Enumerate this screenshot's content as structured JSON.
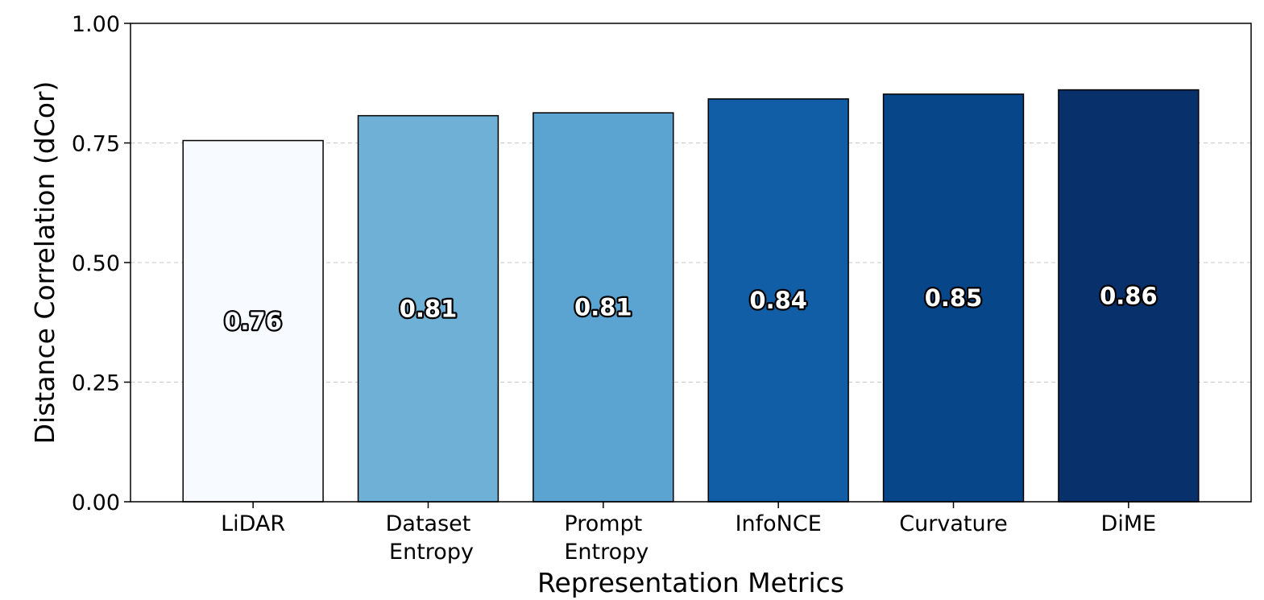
{
  "chart_data": {
    "type": "bar",
    "categories": [
      [
        "LiDAR"
      ],
      [
        "Dataset",
        "Entropy"
      ],
      [
        "Prompt",
        "Entropy"
      ],
      [
        "InfoNCE"
      ],
      [
        "Curvature"
      ],
      [
        "DiME"
      ]
    ],
    "values": [
      0.755,
      0.807,
      0.813,
      0.842,
      0.852,
      0.861
    ],
    "value_labels": [
      "0.76",
      "0.81",
      "0.81",
      "0.84",
      "0.85",
      "0.86"
    ],
    "bar_colors": [
      "#f7fbff",
      "#6fb0d7",
      "#5ba3d0",
      "#125ea6",
      "#08468a",
      "#08306b"
    ],
    "label_colors": [
      "#f7fbff",
      "#ffffff",
      "#ffffff",
      "#ffffff",
      "#ffffff",
      "#ffffff"
    ],
    "title": "",
    "xlabel": "Representation Metrics",
    "ylabel": "Distance Correlation (dCor)",
    "ylim": [
      0,
      1
    ],
    "yticks": [
      0,
      0.25,
      0.5,
      0.75,
      1
    ],
    "ytick_labels": [
      "0.00",
      "0.25",
      "0.50",
      "0.75",
      "1.00"
    ],
    "grid": "y-dashed"
  }
}
